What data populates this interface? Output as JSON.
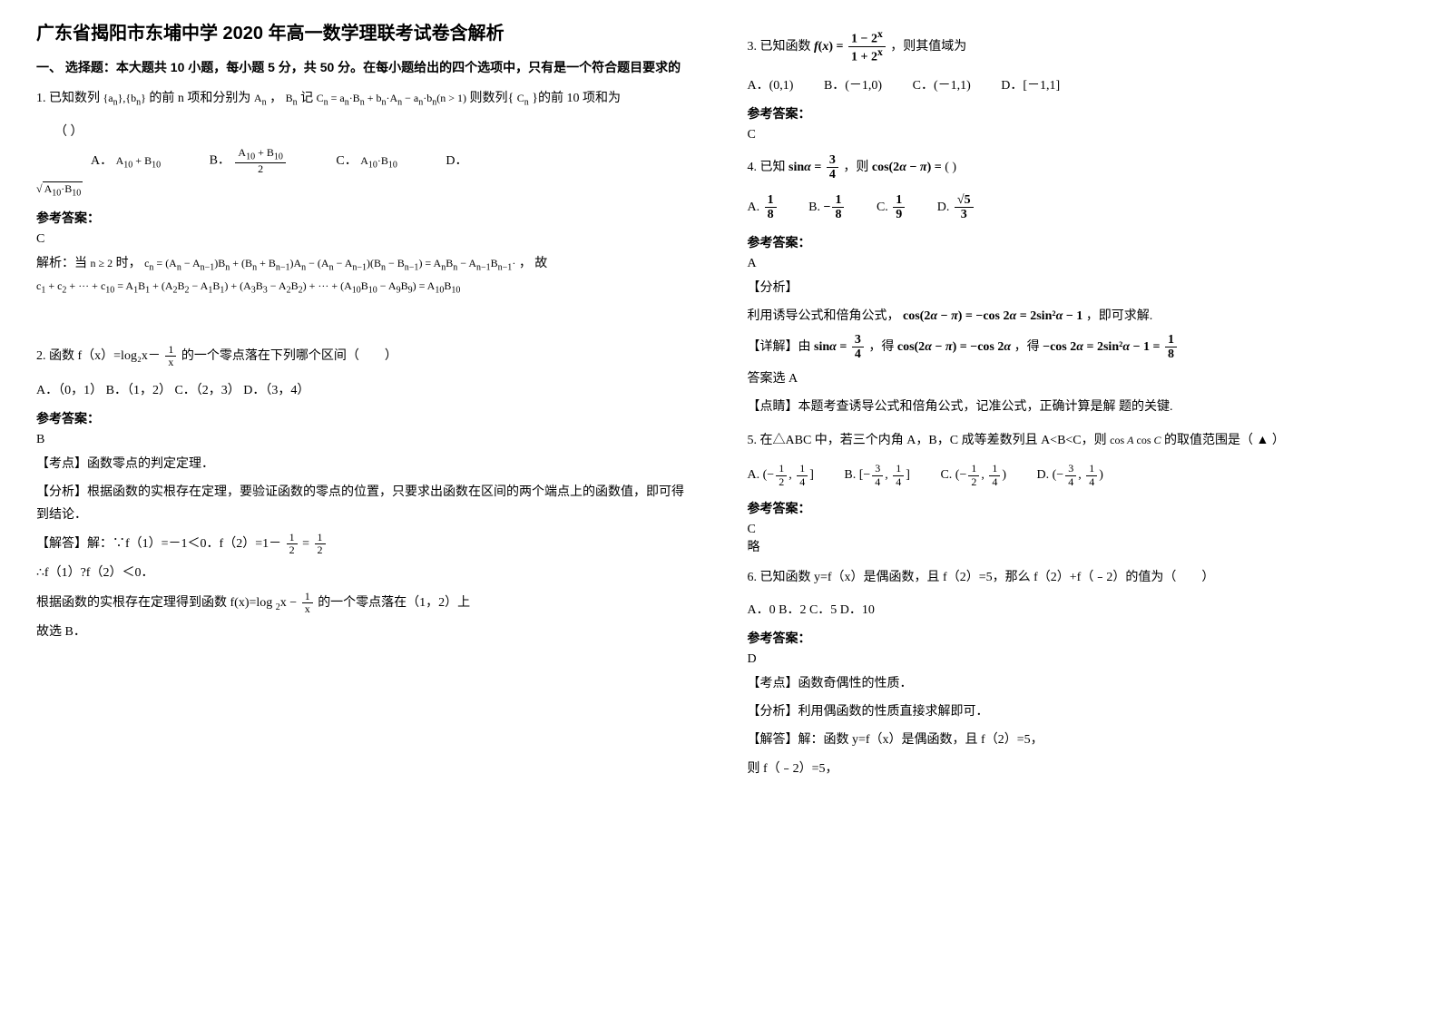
{
  "title": "广东省揭阳市东埔中学 2020 年高一数学理联考试卷含解析",
  "part1_header": "一、 选择题：本大题共 10 小题，每小题 5 分，共 50 分。在每小题给出的四个选项中，只有是一个符合题目要求的",
  "q1": {
    "stem_pre": "1. 已知数列",
    "stem_mid1": "的前 n 项和分别为",
    "stem_mid2": "，",
    "stem_mid3": "记",
    "stem_post": "则数列{",
    "stem_end": "}的前 10 项和为",
    "paren": "（        ）",
    "optA_label": "A．",
    "optB_label": "B．",
    "optC_label": "C．",
    "optD_label": "D．",
    "ans_label": "参考答案：",
    "ans": "C",
    "sol_pre": "解析：当",
    "sol_mid": "时，",
    "sol_post": "，  故"
  },
  "q2": {
    "stem": "2. 函数 f（x）=log₂x－",
    "stem_post": "的一个零点落在下列哪个区间（　　）",
    "opts": "A．（0，1）  B．（1，2）  C．（2，3）  D．（3，4）",
    "ans_label": "参考答案：",
    "ans": "B",
    "kp": "【考点】函数零点的判定定理．",
    "fx": "【分析】根据函数的实根存在定理，要验证函数的零点的位置，只要求出函数在区间的两个端点上的函数值，即可得到结论．",
    "jd_pre": "【解答】解：∵f（1）=－1＜0．f（2）=1－",
    "jd_eq": "=",
    "jd2": "∴f（1）?f（2）＜0．",
    "jd3_pre": "根据函数的实根存在定理得到函数",
    "jd3_post": "的一个零点落在（1，2）上",
    "jd4": "故选 B．"
  },
  "q3": {
    "stem_pre": "3. 已知函数",
    "stem_post": "，则其值域为",
    "optA": "A．(0,1)",
    "optB": "B．(－1,0)",
    "optC": "C．(－1,1)",
    "optD": "D．[－1,1]",
    "ans_label": "参考答案：",
    "ans": "C"
  },
  "q4": {
    "stem_pre": "4. 已知",
    "stem_mid": "，则",
    "stem_post": "( )",
    "optA_label": "A.",
    "optB_label": "B.",
    "optC_label": "C.",
    "optD_label": "D.",
    "ans_label": "参考答案：",
    "ans": "A",
    "fx_label": "【分析】",
    "fx": "利用诱导公式和倍角公式，",
    "fx_post": "，即可求解.",
    "xj_pre": "【详解】由",
    "xj_mid1": "，得",
    "xj_mid2": "，得",
    "xj2": "答案选 A",
    "ds": "【点睛】本题考查诱导公式和倍角公式，记准公式，正确计算是解 题的关键."
  },
  "q5": {
    "stem": "5. 在△ABC 中，若三个内角 A，B，C 成等差数列且 A<B<C，则",
    "stem_post": "的取值范围是（ ▲ ）",
    "optA_label": "A.",
    "optB_label": "B.",
    "optC_label": "C.",
    "optD_label": "D.",
    "ans_label": "参考答案：",
    "ans": "C",
    "ans2": "略"
  },
  "q6": {
    "stem": "6. 已知函数 y=f（x）是偶函数，且 f（2）=5，那么 f（2）+f（﹣2）的值为（　　）",
    "opts": "A．0  B．2  C．5  D．10",
    "ans_label": "参考答案：",
    "ans": "D",
    "kp": "【考点】函数奇偶性的性质．",
    "fx": "【分析】利用偶函数的性质直接求解即可．",
    "jd": "【解答】解：函数 y=f（x）是偶函数，且 f（2）=5，",
    "jd2": "则 f（﹣2）=5，"
  }
}
